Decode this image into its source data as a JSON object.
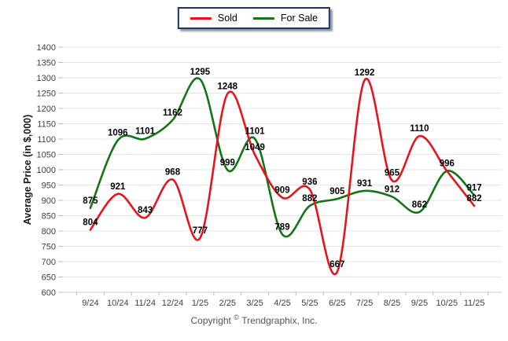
{
  "chart_data": {
    "type": "line",
    "categories": [
      "9/24",
      "10/24",
      "11/24",
      "12/24",
      "1/25",
      "2/25",
      "3/25",
      "4/25",
      "5/25",
      "6/25",
      "7/25",
      "8/25",
      "9/25",
      "10/25",
      "11/25"
    ],
    "series": [
      {
        "name": "Sold",
        "color": "#e8141d",
        "values": [
          804,
          921,
          843,
          968,
          777,
          1248,
          1049,
          909,
          936,
          667,
          1292,
          965,
          1110,
          996,
          882
        ],
        "point_labels": [
          "804",
          "921",
          "843",
          "968",
          "777",
          "1248",
          "1049",
          "909",
          "936",
          "667",
          "1292",
          "965",
          "1110",
          "",
          "882"
        ]
      },
      {
        "name": "For Sale",
        "color": "#157415",
        "values": [
          875,
          1096,
          1101,
          1162,
          1295,
          999,
          1101,
          789,
          882,
          905,
          931,
          912,
          862,
          996,
          917
        ],
        "point_labels": [
          "875",
          "1096",
          "1101",
          "1162",
          "1295",
          "999",
          "1101",
          "789",
          "882",
          "905",
          "931",
          "912",
          "862",
          "996",
          "917"
        ]
      }
    ],
    "title": "",
    "xlabel": "",
    "ylabel": "Average Price (in $,000)",
    "ylim": [
      600,
      1400
    ],
    "ytick_step": 50,
    "yticks": [
      600,
      650,
      700,
      750,
      800,
      850,
      900,
      950,
      1000,
      1050,
      1100,
      1150,
      1200,
      1250,
      1300,
      1350,
      1400
    ],
    "grid": true,
    "legend_position": "top-center"
  },
  "footer": {
    "copyright_prefix": "Copyright",
    "copyright_symbol": "©",
    "copyright_company": "Trendgraphix, Inc."
  }
}
